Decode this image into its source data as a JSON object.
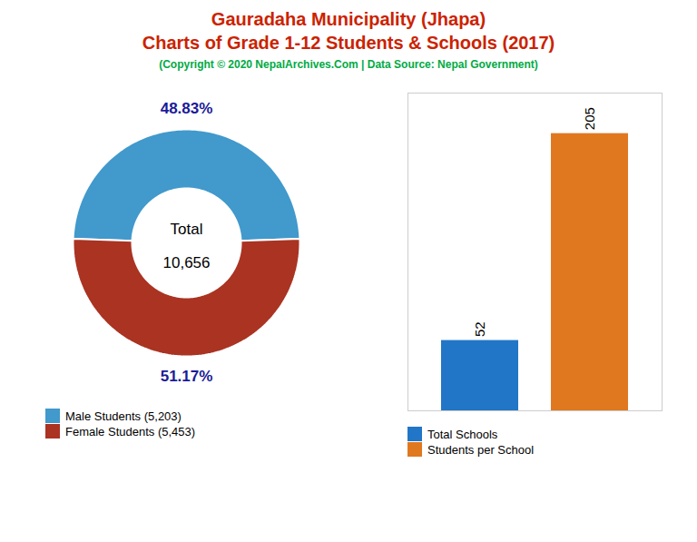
{
  "chart_data": [
    {
      "type": "donut",
      "title": "Gauradaha Municipality (Jhapa)\nCharts of Grade 1-12 Students & Schools (2017)",
      "subtitle": "(Copyright © 2020 NepalArchives.Com | Data Source: Nepal Government)",
      "categories": [
        "Male Students (5,203)",
        "Female Students (5,453)"
      ],
      "values": [
        48.83,
        51.17
      ],
      "value_labels": [
        "48.83%",
        "51.17%"
      ],
      "colors": [
        "#4199cc",
        "#aa3322"
      ],
      "data_labels": true,
      "annotations": [
        "Total",
        "10,656"
      ],
      "legend": "lower left"
    },
    {
      "type": "bar",
      "categories": [
        "Total Schools",
        "Students per School"
      ],
      "values": [
        52,
        205
      ],
      "colors": [
        "#2176c7",
        "#e07820"
      ],
      "ylim": [
        0,
        235
      ],
      "yticks": [],
      "tick_labels": false,
      "grid": false,
      "data_labels": true,
      "legend": "lower left"
    }
  ]
}
